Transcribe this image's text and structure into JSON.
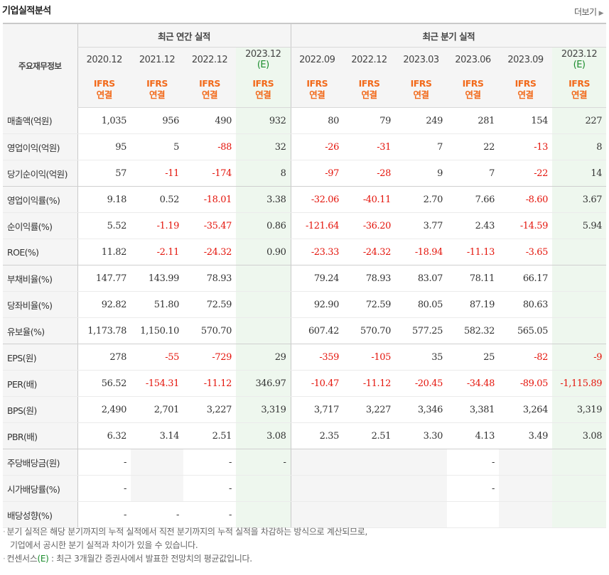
{
  "section_title": "기업실적분석",
  "more_label": "더보기",
  "more_icon": "chevron-right-icon",
  "header": {
    "row_label": "주요재무정보",
    "annual_group": "최근 연간 실적",
    "quarter_group": "최근 분기 실적",
    "periods": [
      {
        "line1": "2020.12",
        "line2": ""
      },
      {
        "line1": "2021.12",
        "line2": ""
      },
      {
        "line1": "2022.12",
        "line2": ""
      },
      {
        "line1": "2023.12",
        "line2": "(E)"
      },
      {
        "line1": "2022.09",
        "line2": ""
      },
      {
        "line1": "2022.12",
        "line2": ""
      },
      {
        "line1": "2023.03",
        "line2": ""
      },
      {
        "line1": "2023.06",
        "line2": ""
      },
      {
        "line1": "2023.09",
        "line2": ""
      },
      {
        "line1": "2023.12",
        "line2": "(E)"
      }
    ],
    "basis_line1": "IFRS",
    "basis_line2": "연결"
  },
  "rows": [
    {
      "label": "매출액(억원)",
      "values": [
        "1,035",
        "956",
        "490",
        "932",
        "80",
        "79",
        "249",
        "281",
        "154",
        "227"
      ]
    },
    {
      "label": "영업이익(억원)",
      "values": [
        "95",
        "5",
        "-88",
        "32",
        "-26",
        "-31",
        "7",
        "22",
        "-13",
        "8"
      ]
    },
    {
      "label": "당기순이익(억원)",
      "values": [
        "57",
        "-11",
        "-174",
        "8",
        "-97",
        "-28",
        "9",
        "7",
        "-22",
        "14"
      ]
    },
    {
      "label": "영업이익률(%)",
      "values": [
        "9.18",
        "0.52",
        "-18.01",
        "3.38",
        "-32.06",
        "-40.11",
        "2.70",
        "7.66",
        "-8.60",
        "3.67"
      ]
    },
    {
      "label": "순이익률(%)",
      "values": [
        "5.52",
        "-1.19",
        "-35.47",
        "0.86",
        "-121.64",
        "-36.20",
        "3.77",
        "2.43",
        "-14.59",
        "5.94"
      ]
    },
    {
      "label": "ROE(%)",
      "values": [
        "11.82",
        "-2.11",
        "-24.32",
        "0.90",
        "-23.33",
        "-24.32",
        "-18.94",
        "-11.13",
        "-3.65",
        ""
      ]
    },
    {
      "label": "부채비율(%)",
      "values": [
        "147.77",
        "143.99",
        "78.93",
        "",
        "79.24",
        "78.93",
        "83.07",
        "78.11",
        "66.17",
        ""
      ]
    },
    {
      "label": "당좌비율(%)",
      "values": [
        "92.82",
        "51.80",
        "72.59",
        "",
        "92.90",
        "72.59",
        "80.05",
        "87.19",
        "80.63",
        ""
      ]
    },
    {
      "label": "유보율(%)",
      "values": [
        "1,173.78",
        "1,150.10",
        "570.70",
        "",
        "607.42",
        "570.70",
        "577.25",
        "582.32",
        "565.05",
        ""
      ]
    },
    {
      "label": "EPS(원)",
      "values": [
        "278",
        "-55",
        "-729",
        "29",
        "-359",
        "-105",
        "35",
        "25",
        "-82",
        "-9"
      ]
    },
    {
      "label": "PER(배)",
      "values": [
        "56.52",
        "-154.31",
        "-11.12",
        "346.97",
        "-10.47",
        "-11.12",
        "-20.45",
        "-34.48",
        "-89.05",
        "-1,115.89"
      ]
    },
    {
      "label": "BPS(원)",
      "values": [
        "2,490",
        "2,701",
        "3,227",
        "3,319",
        "3,717",
        "3,227",
        "3,346",
        "3,381",
        "3,264",
        "3,319"
      ]
    },
    {
      "label": "PBR(배)",
      "values": [
        "6.32",
        "3.14",
        "2.51",
        "3.08",
        "2.35",
        "2.51",
        "3.30",
        "4.13",
        "3.49",
        "3.08"
      ]
    },
    {
      "label": "주당배당금(원)",
      "values": [
        "-",
        "",
        "-",
        "-",
        "",
        "",
        "",
        "-",
        "",
        ""
      ]
    },
    {
      "label": "시가배당률(%)",
      "values": [
        "-",
        "",
        "-",
        "",
        "",
        "",
        "",
        "-",
        "",
        ""
      ]
    },
    {
      "label": "배당성향(%)",
      "values": [
        "-",
        "-",
        "-",
        "",
        "",
        "",
        "",
        "",
        "",
        ""
      ]
    }
  ],
  "notes": {
    "line1": "분기 실적은 해당 분기까지의 누적 실적에서 직전 분기까지의 누적 실적을 차감하는 방식으로 계산되므로,",
    "line2": "기업에서 공시한 분기 실적과 차이가 있을 수 있습니다.",
    "line3_prefix": "컨센서스",
    "line3_mark": "(E)",
    "line3_rest": " : 최근 3개월간 증권사에서 발표한 전망치의 평균값입니다."
  },
  "colors": {
    "negative": "#e4140b",
    "estimate": "#1a8c2c",
    "ifrs": "#f26a1b",
    "estimate_bg": "#eef7ee"
  }
}
